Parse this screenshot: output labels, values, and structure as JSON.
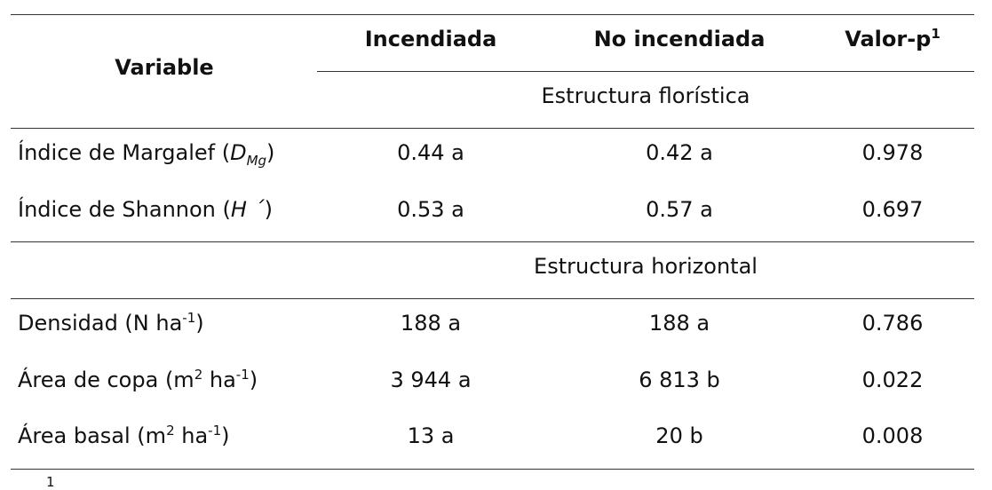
{
  "table": {
    "header": {
      "variable": "Variable",
      "columns": [
        "Incendiada",
        "No incendiada",
        "Valor-p"
      ],
      "pvalue_mark": "1"
    },
    "sections": [
      {
        "title": "Estructura florística",
        "rows": [
          {
            "label": [
              "Índice de Margalef (",
              "D",
              "Mg",
              ")"
            ],
            "values": [
              "0.44 a",
              "0.42 a",
              "0.978"
            ]
          },
          {
            "label": [
              "Índice de Shannon (",
              "H ´",
              ")"
            ],
            "values": [
              "0.53 a",
              "0.57 a",
              "0.697"
            ]
          }
        ]
      },
      {
        "title": "Estructura horizontal",
        "rows": [
          {
            "label": [
              "Densidad (N ha",
              "-1",
              ")"
            ],
            "values": [
              "188 a",
              "188 a",
              "0.786"
            ]
          },
          {
            "label": [
              "Área de copa (m",
              "2",
              " ha",
              "-1",
              ")"
            ],
            "values": [
              "3 944 a",
              "6 813 b",
              "0.022"
            ]
          },
          {
            "label": [
              "Área basal (m",
              "2",
              " ha",
              "-1",
              ")"
            ],
            "values": [
              "13 a",
              "20 b",
              "0.008"
            ]
          }
        ]
      }
    ],
    "footnote_mark": "1"
  }
}
